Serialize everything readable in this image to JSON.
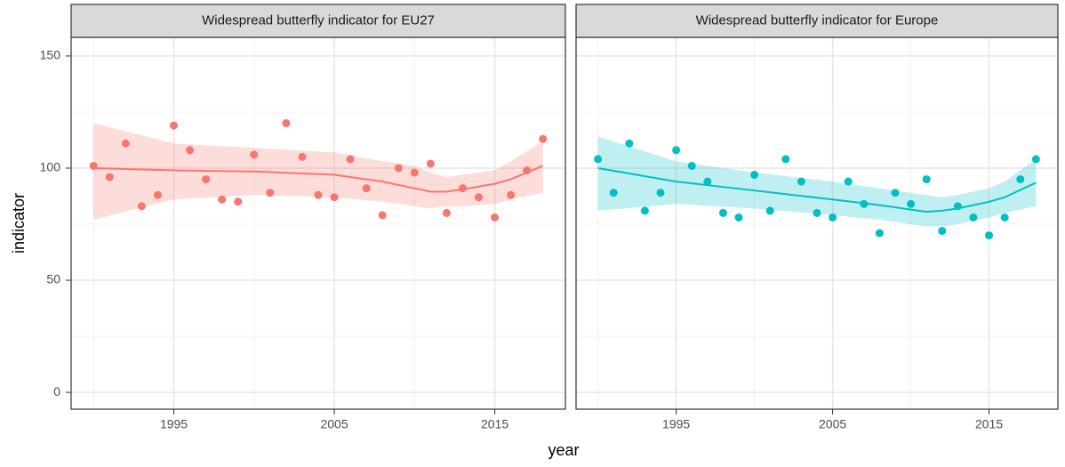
{
  "chart_data": {
    "type": "facet",
    "x_label": "year",
    "y_label": "indicator",
    "xlim": [
      1988.6,
      2019.4
    ],
    "xticks": [
      1995,
      2005,
      2015
    ],
    "x_minor_grid": [
      1990,
      2000,
      2010
    ],
    "ylim": [
      -7.5,
      158.3
    ],
    "yticks": [
      0,
      50,
      100,
      150
    ],
    "y_minor_grid": [
      25,
      75,
      125
    ],
    "panels": [
      {
        "type": "scatter",
        "title": "Widespread butterfly indicator for EU27",
        "color": "#F8766D",
        "x": [
          1990,
          1991,
          1992,
          1993,
          1994,
          1995,
          1996,
          1997,
          1998,
          1999,
          2000,
          2001,
          2002,
          2003,
          2004,
          2005,
          2006,
          2007,
          2008,
          2009,
          2010,
          2011,
          2012,
          2013,
          2014,
          2015,
          2016,
          2017,
          2018
        ],
        "values": [
          101,
          96,
          111,
          83,
          88,
          119,
          108,
          95,
          86,
          85,
          106,
          89,
          120,
          105,
          88,
          87,
          104,
          91,
          79,
          100,
          98,
          102,
          80,
          91,
          87,
          78,
          88,
          99,
          113
        ],
        "smooth": {
          "x": [
            1990,
            1995,
            2000,
            2005,
            2008,
            2010,
            2011,
            2012,
            2013,
            2015,
            2016,
            2018
          ],
          "values": [
            100,
            99,
            98.5,
            97,
            94,
            91,
            89.5,
            89.5,
            90.5,
            93,
            95,
            101
          ],
          "lower": [
            77,
            86,
            88,
            87,
            85,
            83,
            82,
            83,
            83,
            84,
            86,
            89
          ],
          "upper": [
            120,
            111,
            109,
            107,
            103,
            101,
            98,
            96,
            97,
            99,
            103,
            112
          ]
        }
      },
      {
        "type": "scatter",
        "title": "Widespread butterfly indicator for Europe",
        "color": "#00BFC4",
        "x": [
          1990,
          1991,
          1992,
          1993,
          1994,
          1995,
          1996,
          1997,
          1998,
          1999,
          2000,
          2001,
          2002,
          2003,
          2004,
          2005,
          2006,
          2007,
          2008,
          2009,
          2010,
          2011,
          2012,
          2013,
          2014,
          2015,
          2016,
          2017,
          2018
        ],
        "values": [
          104,
          89,
          111,
          81,
          89,
          108,
          101,
          94,
          80,
          78,
          97,
          81,
          104,
          94,
          80,
          78,
          94,
          84,
          71,
          89,
          84,
          95,
          72,
          83,
          78,
          70,
          78,
          95,
          104
        ],
        "smooth": {
          "x": [
            1990,
            1995,
            2000,
            2005,
            2008,
            2010,
            2011,
            2012,
            2013,
            2015,
            2016,
            2018
          ],
          "values": [
            100,
            94,
            90,
            86,
            83.5,
            81.5,
            80.5,
            81,
            82,
            85,
            87,
            93.5
          ],
          "lower": [
            81,
            84,
            82,
            79,
            77,
            75,
            74,
            74,
            75,
            78,
            80,
            83
          ],
          "upper": [
            114,
            103,
            98,
            94,
            91,
            89,
            88,
            87,
            88,
            91,
            94,
            104
          ]
        }
      }
    ]
  }
}
